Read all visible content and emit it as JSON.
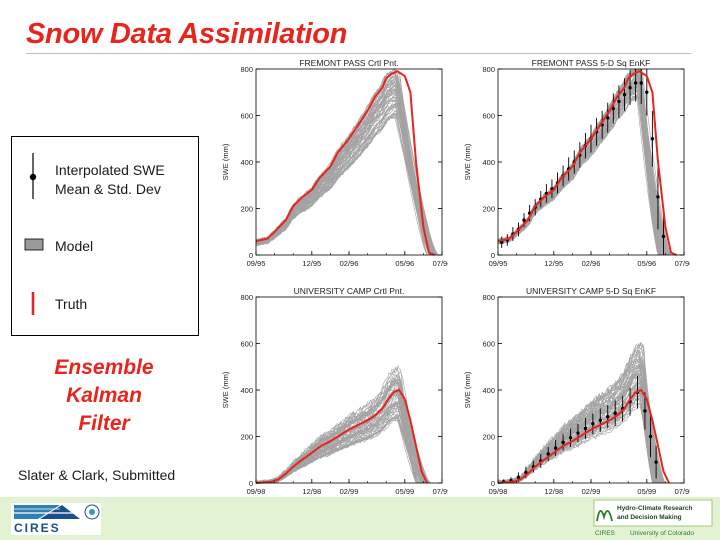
{
  "title": "Snow Data Assimilation",
  "legend": {
    "obs_line1": "Interpolated SWE",
    "obs_line2": "Mean & Std. Dev",
    "model": "Model",
    "truth": "Truth"
  },
  "method": [
    "Ensemble",
    "Kalman",
    "Filter"
  ],
  "credit": "Slater & Clark, Submitted",
  "footer": {
    "left_logo_text": "CIRES",
    "right_logo_text_line1": "Hydro-Climate Research",
    "right_logo_text_line2": "and Decision Making",
    "right_caption_1": "CIRES",
    "right_caption_2": "University of Colorado"
  },
  "colors": {
    "title": "#e8241c",
    "truth": "#e8241c",
    "model": "#9a9a9a",
    "footer_bg": "#e4f2d4",
    "obs": "#000000"
  },
  "chart_data": [
    {
      "type": "line",
      "title": "FREMONT PASS   Crtl Pnt.",
      "ylabel": "SWE (mm)",
      "ylim": [
        0,
        800
      ],
      "yticks": [
        0,
        200,
        400,
        600,
        800
      ],
      "xlim": [
        0,
        10
      ],
      "xticks": [
        0,
        3,
        5,
        8,
        10
      ],
      "xticklabels": [
        "09/95",
        "12/95",
        "02/96",
        "05/96",
        "07/96"
      ],
      "truth": {
        "x": [
          0,
          0.6,
          1,
          1.6,
          2,
          2.5,
          3,
          3.4,
          4,
          4.4,
          5,
          5.5,
          6,
          6.4,
          6.8,
          7,
          7.3,
          7.6,
          8,
          8.3,
          8.6,
          9,
          9.3,
          9.6
        ],
        "y": [
          60,
          70,
          100,
          150,
          210,
          250,
          280,
          330,
          380,
          440,
          500,
          560,
          620,
          680,
          720,
          760,
          780,
          790,
          770,
          700,
          400,
          120,
          10,
          0
        ]
      },
      "ensemble": {
        "name": "Model",
        "members": 60,
        "peak_low": 590,
        "peak_high": 800,
        "melt_end_low": 9.2,
        "melt_end_high": 9.8
      }
    },
    {
      "type": "line",
      "title": "FREMONT PASS   5-D Sq EnKF",
      "ylabel": "SWE (mm)",
      "ylim": [
        0,
        800
      ],
      "yticks": [
        0,
        200,
        400,
        600,
        800
      ],
      "xlim": [
        0,
        10
      ],
      "xticks": [
        0,
        3,
        5,
        8,
        10
      ],
      "xticklabels": [
        "09/95",
        "12/95",
        "02/96",
        "05/96",
        "07/96"
      ],
      "truth": {
        "x": [
          0,
          0.6,
          1,
          1.6,
          2,
          2.5,
          3,
          3.4,
          4,
          4.4,
          5,
          5.5,
          6,
          6.4,
          6.8,
          7,
          7.3,
          7.6,
          8,
          8.3,
          8.6,
          9,
          9.3,
          9.6
        ],
        "y": [
          60,
          70,
          100,
          150,
          210,
          250,
          280,
          330,
          380,
          440,
          500,
          560,
          620,
          680,
          720,
          760,
          780,
          790,
          770,
          700,
          400,
          120,
          10,
          0
        ]
      },
      "observations": {
        "x": [
          0.2,
          0.5,
          0.8,
          1.1,
          1.4,
          1.7,
          2,
          2.3,
          2.6,
          2.9,
          3.2,
          3.5,
          3.8,
          4.1,
          4.4,
          4.7,
          5,
          5.3,
          5.6,
          5.9,
          6.2,
          6.5,
          6.8,
          7.1,
          7.4,
          7.7,
          8,
          8.3,
          8.6,
          8.9
        ],
        "y": [
          55,
          65,
          90,
          110,
          150,
          180,
          205,
          240,
          265,
          285,
          310,
          340,
          370,
          400,
          430,
          470,
          500,
          530,
          560,
          590,
          630,
          660,
          690,
          720,
          740,
          740,
          700,
          500,
          250,
          80
        ],
        "std": [
          25,
          25,
          30,
          30,
          30,
          35,
          35,
          35,
          40,
          40,
          45,
          45,
          50,
          50,
          55,
          55,
          60,
          60,
          60,
          65,
          65,
          70,
          70,
          75,
          80,
          90,
          100,
          120,
          140,
          100
        ]
      },
      "ensemble": {
        "name": "Model",
        "members": 60,
        "peak_low": 680,
        "peak_high": 810,
        "melt_end_low": 8.6,
        "melt_end_high": 9.3
      }
    },
    {
      "type": "line",
      "title": "UNIVERSITY CAMP   Crtl Pnt.",
      "ylabel": "SWE (mm)",
      "ylim": [
        0,
        800
      ],
      "yticks": [
        0,
        200,
        400,
        600,
        800
      ],
      "xlim": [
        0,
        10
      ],
      "xticks": [
        0,
        3,
        5,
        8,
        10
      ],
      "xticklabels": [
        "09/98",
        "12/98",
        "02/99",
        "05/99",
        "07/99"
      ],
      "truth": {
        "x": [
          0,
          0.8,
          1.2,
          1.6,
          2,
          2.4,
          3,
          3.5,
          4,
          4.5,
          5,
          5.5,
          6,
          6.4,
          6.8,
          7.1,
          7.4,
          7.7,
          8,
          8.3,
          8.6,
          8.9,
          9.2
        ],
        "y": [
          0,
          5,
          15,
          40,
          70,
          95,
          130,
          160,
          180,
          205,
          230,
          250,
          270,
          290,
          320,
          360,
          390,
          400,
          360,
          270,
          160,
          50,
          0
        ]
      },
      "ensemble": {
        "name": "Model",
        "members": 60,
        "peak_low": 260,
        "peak_high": 500,
        "melt_end_low": 8.6,
        "melt_end_high": 9.4
      }
    },
    {
      "type": "line",
      "title": "UNIVERSITY CAMP   5-D Sq EnKF",
      "ylabel": "SWE (mm)",
      "ylim": [
        0,
        800
      ],
      "yticks": [
        0,
        200,
        400,
        600,
        800
      ],
      "xlim": [
        0,
        10
      ],
      "xticks": [
        0,
        3,
        5,
        8,
        10
      ],
      "xticklabels": [
        "09/98",
        "12/98",
        "02/99",
        "05/99",
        "07/99"
      ],
      "truth": {
        "x": [
          0,
          0.8,
          1.2,
          1.6,
          2,
          2.4,
          3,
          3.5,
          4,
          4.5,
          5,
          5.5,
          6,
          6.4,
          6.8,
          7.1,
          7.4,
          7.7,
          8,
          8.3,
          8.6,
          8.9,
          9.2
        ],
        "y": [
          0,
          5,
          15,
          40,
          70,
          95,
          130,
          160,
          180,
          205,
          230,
          250,
          270,
          290,
          320,
          360,
          390,
          400,
          360,
          270,
          160,
          50,
          0
        ]
      },
      "observations": {
        "x": [
          0.3,
          0.7,
          1.1,
          1.5,
          1.9,
          2.3,
          2.7,
          3.1,
          3.5,
          3.9,
          4.3,
          4.7,
          5.1,
          5.5,
          5.9,
          6.3,
          6.7,
          7.1,
          7.5,
          7.9,
          8.2,
          8.5
        ],
        "y": [
          5,
          10,
          25,
          45,
          70,
          95,
          125,
          150,
          175,
          195,
          215,
          235,
          255,
          270,
          285,
          300,
          320,
          350,
          390,
          310,
          200,
          90
        ],
        "std": [
          10,
          15,
          20,
          25,
          25,
          30,
          30,
          35,
          35,
          40,
          40,
          45,
          45,
          50,
          50,
          55,
          55,
          60,
          70,
          80,
          90,
          70
        ]
      },
      "ensemble": {
        "name": "Model",
        "members": 60,
        "peak_low": 330,
        "peak_high": 610,
        "melt_end_low": 8.3,
        "melt_end_high": 9.0
      }
    }
  ]
}
